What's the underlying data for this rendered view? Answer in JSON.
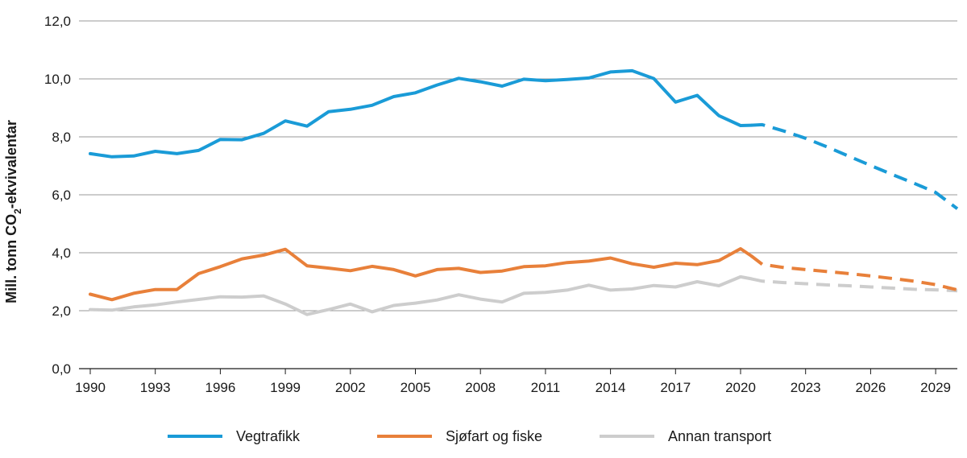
{
  "chart_data": {
    "type": "line",
    "title": "",
    "xlabel": "",
    "ylabel": {
      "main": "Mill. tonn CO",
      "sub": "2",
      "tail": "-ekvivalentar"
    },
    "ylim": [
      0,
      12
    ],
    "y_ticks": [
      0,
      2,
      4,
      6,
      8,
      10,
      12
    ],
    "y_tick_labels": [
      "0,0",
      "2,0",
      "4,0",
      "6,0",
      "8,0",
      "10,0",
      "12,0"
    ],
    "xlim": [
      1990,
      2030
    ],
    "x_ticks": [
      1990,
      1993,
      1996,
      1999,
      2002,
      2005,
      2008,
      2011,
      2014,
      2017,
      2020,
      2023,
      2026,
      2029
    ],
    "x_tick_labels": [
      "1990",
      "1993",
      "1996",
      "1999",
      "2002",
      "2005",
      "2008",
      "2011",
      "2014",
      "2017",
      "2020",
      "2023",
      "2026",
      "2029"
    ],
    "grid": "horizontal",
    "legend_position": "bottom",
    "series": [
      {
        "name": "Vegtrafikk",
        "color": "#1a9bd7",
        "historical": {
          "x": [
            1990,
            1991,
            1992,
            1993,
            1994,
            1995,
            1996,
            1997,
            1998,
            1999,
            2000,
            2001,
            2002,
            2003,
            2004,
            2005,
            2006,
            2007,
            2008,
            2009,
            2010,
            2011,
            2012,
            2013,
            2014,
            2015,
            2016,
            2017,
            2018,
            2019,
            2020,
            2020.5
          ],
          "y": [
            7.42,
            7.31,
            7.34,
            7.5,
            7.42,
            7.53,
            7.91,
            7.9,
            8.12,
            8.55,
            8.37,
            8.87,
            8.95,
            9.09,
            9.39,
            9.52,
            9.79,
            10.02,
            9.9,
            9.75,
            9.99,
            9.94,
            9.98,
            10.03,
            10.24,
            10.28,
            10.01,
            9.2,
            9.43,
            8.73,
            8.39,
            8.4
          ]
        },
        "projection": {
          "x": [
            2020.5,
            2021,
            2022,
            2023,
            2024,
            2025,
            2026,
            2027,
            2028,
            2029,
            2030
          ],
          "y": [
            8.4,
            8.42,
            8.2,
            7.95,
            7.65,
            7.33,
            7.01,
            6.7,
            6.4,
            6.08,
            5.52
          ]
        }
      },
      {
        "name": "Sjøfart og fiske",
        "color": "#e8803a",
        "historical": {
          "x": [
            1990,
            1991,
            1992,
            1993,
            1994,
            1995,
            1996,
            1997,
            1998,
            1999,
            2000,
            2001,
            2002,
            2003,
            2004,
            2005,
            2006,
            2007,
            2008,
            2009,
            2010,
            2011,
            2012,
            2013,
            2014,
            2015,
            2016,
            2017,
            2018,
            2019,
            2020,
            2020.5
          ],
          "y": [
            2.57,
            2.38,
            2.6,
            2.73,
            2.73,
            3.28,
            3.52,
            3.79,
            3.92,
            4.12,
            3.55,
            3.47,
            3.38,
            3.53,
            3.42,
            3.2,
            3.42,
            3.46,
            3.32,
            3.37,
            3.52,
            3.55,
            3.66,
            3.71,
            3.82,
            3.62,
            3.5,
            3.64,
            3.59,
            3.73,
            4.14,
            3.89
          ]
        },
        "projection": {
          "x": [
            2020.5,
            2021,
            2022,
            2023,
            2024,
            2025,
            2026,
            2027,
            2028,
            2029,
            2030
          ],
          "y": [
            3.89,
            3.6,
            3.49,
            3.42,
            3.35,
            3.28,
            3.2,
            3.11,
            3.02,
            2.9,
            2.72
          ]
        }
      },
      {
        "name": "Annan transport",
        "color": "#cdcdcd",
        "historical": {
          "x": [
            1990,
            1991,
            1992,
            1993,
            1994,
            1995,
            1996,
            1997,
            1998,
            1999,
            2000,
            2001,
            2002,
            2003,
            2004,
            2005,
            2006,
            2007,
            2008,
            2009,
            2010,
            2011,
            2012,
            2013,
            2014,
            2015,
            2016,
            2017,
            2018,
            2019,
            2020,
            2020.5
          ],
          "y": [
            2.04,
            2.02,
            2.13,
            2.2,
            2.3,
            2.39,
            2.48,
            2.47,
            2.51,
            2.23,
            1.87,
            2.04,
            2.23,
            1.96,
            2.18,
            2.26,
            2.37,
            2.55,
            2.4,
            2.3,
            2.6,
            2.63,
            2.71,
            2.88,
            2.71,
            2.75,
            2.87,
            2.82,
            3.0,
            2.86,
            3.17,
            3.1
          ]
        },
        "projection": {
          "x": [
            2020.5,
            2021,
            2022,
            2023,
            2024,
            2025,
            2026,
            2027,
            2028,
            2029,
            2030
          ],
          "y": [
            3.1,
            3.02,
            2.97,
            2.93,
            2.89,
            2.86,
            2.82,
            2.78,
            2.74,
            2.72,
            2.69
          ]
        }
      }
    ]
  }
}
